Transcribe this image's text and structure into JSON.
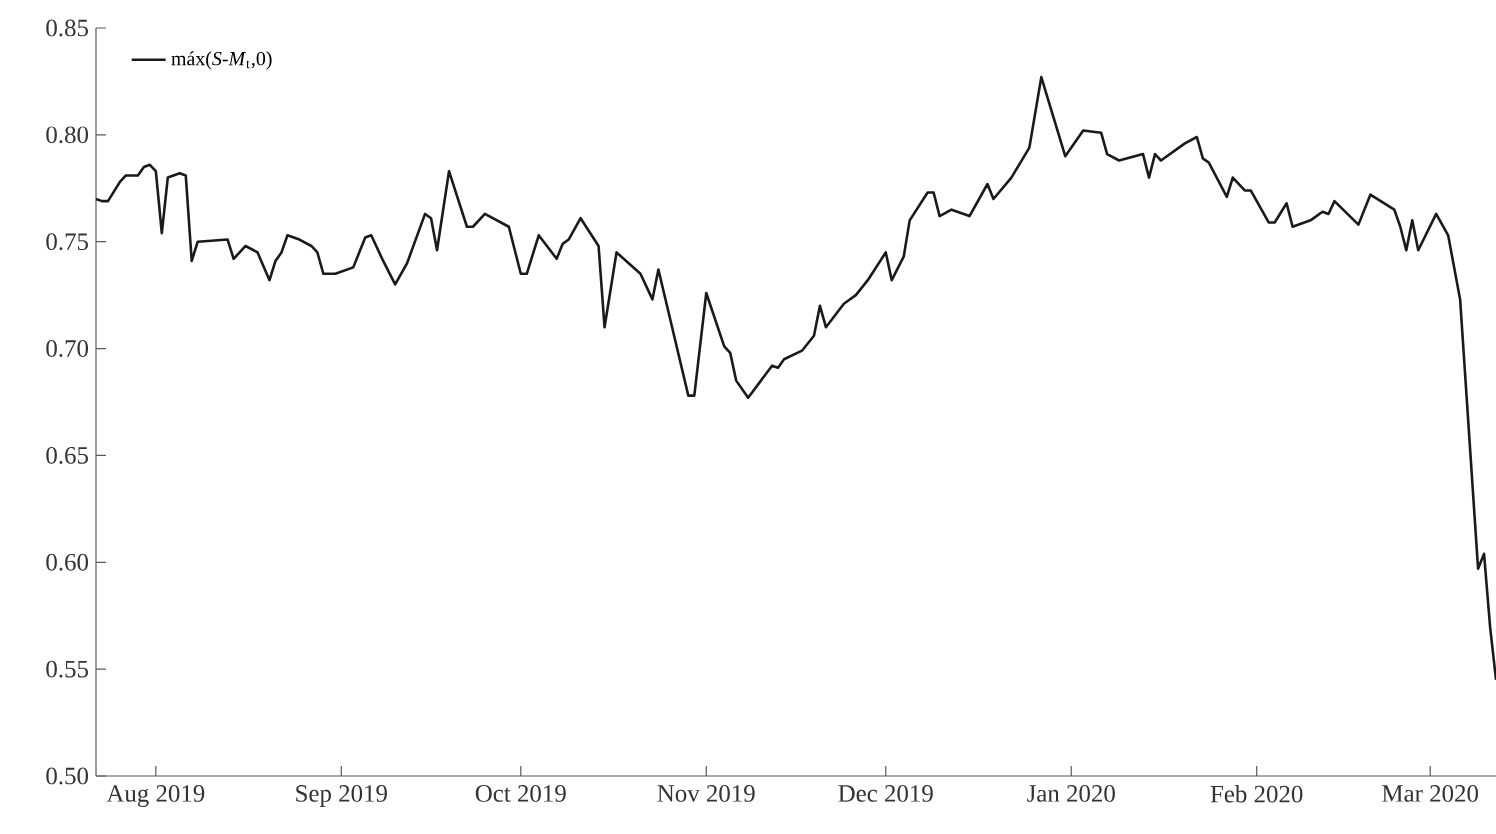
{
  "chart_data": {
    "type": "line",
    "x": [
      "2019-07-22",
      "2019-07-23",
      "2019-07-24",
      "2019-07-26",
      "2019-07-27",
      "2019-07-29",
      "2019-07-30",
      "2019-07-31",
      "2019-08-01",
      "2019-08-02",
      "2019-08-03",
      "2019-08-05",
      "2019-08-06",
      "2019-08-07",
      "2019-08-08",
      "2019-08-13",
      "2019-08-14",
      "2019-08-16",
      "2019-08-18",
      "2019-08-20",
      "2019-08-21",
      "2019-08-22",
      "2019-08-23",
      "2019-08-25",
      "2019-08-27",
      "2019-08-28",
      "2019-08-29",
      "2019-08-31",
      "2019-09-03",
      "2019-09-05",
      "2019-09-06",
      "2019-09-08",
      "2019-09-10",
      "2019-09-12",
      "2019-09-15",
      "2019-09-16",
      "2019-09-17",
      "2019-09-19",
      "2019-09-22",
      "2019-09-23",
      "2019-09-25",
      "2019-09-29",
      "2019-10-01",
      "2019-10-02",
      "2019-10-04",
      "2019-10-07",
      "2019-10-08",
      "2019-10-09",
      "2019-10-11",
      "2019-10-14",
      "2019-10-15",
      "2019-10-17",
      "2019-10-21",
      "2019-10-23",
      "2019-10-24",
      "2019-10-29",
      "2019-10-30",
      "2019-11-01",
      "2019-11-04",
      "2019-11-05",
      "2019-11-06",
      "2019-11-08",
      "2019-11-12",
      "2019-11-13",
      "2019-11-14",
      "2019-11-17",
      "2019-11-19",
      "2019-11-20",
      "2019-11-21",
      "2019-11-24",
      "2019-11-26",
      "2019-11-28",
      "2019-12-01",
      "2019-12-02",
      "2019-12-04",
      "2019-12-05",
      "2019-12-08",
      "2019-12-09",
      "2019-12-10",
      "2019-12-12",
      "2019-12-15",
      "2019-12-18",
      "2019-12-19",
      "2019-12-22",
      "2019-12-25",
      "2019-12-27",
      "2019-12-31",
      "2020-01-03",
      "2020-01-06",
      "2020-01-07",
      "2020-01-09",
      "2020-01-13",
      "2020-01-14",
      "2020-01-15",
      "2020-01-16",
      "2020-01-20",
      "2020-01-22",
      "2020-01-23",
      "2020-01-24",
      "2020-01-27",
      "2020-01-28",
      "2020-01-30",
      "2020-01-31",
      "2020-02-03",
      "2020-02-04",
      "2020-02-06",
      "2020-02-07",
      "2020-02-10",
      "2020-02-12",
      "2020-02-13",
      "2020-02-14",
      "2020-02-18",
      "2020-02-20",
      "2020-02-24",
      "2020-02-25",
      "2020-02-26",
      "2020-02-27",
      "2020-02-28",
      "2020-03-02",
      "2020-03-04",
      "2020-03-06",
      "2020-03-09",
      "2020-03-10",
      "2020-03-11",
      "2020-03-12"
    ],
    "series": [
      {
        "name": "máx(*S*-*M*$_{t}$,0)",
        "color": "#1a1a1a",
        "values": [
          0.77,
          0.769,
          0.769,
          0.778,
          0.781,
          0.781,
          0.785,
          0.786,
          0.783,
          0.754,
          0.78,
          0.782,
          0.781,
          0.741,
          0.75,
          0.751,
          0.742,
          0.748,
          0.745,
          0.732,
          0.741,
          0.745,
          0.753,
          0.751,
          0.748,
          0.745,
          0.735,
          0.735,
          0.738,
          0.752,
          0.753,
          0.741,
          0.73,
          0.74,
          0.763,
          0.761,
          0.746,
          0.783,
          0.757,
          0.757,
          0.763,
          0.757,
          0.735,
          0.735,
          0.753,
          0.742,
          0.749,
          0.751,
          0.761,
          0.748,
          0.71,
          0.745,
          0.735,
          0.723,
          0.737,
          0.678,
          0.678,
          0.726,
          0.701,
          0.698,
          0.685,
          0.677,
          0.692,
          0.691,
          0.695,
          0.699,
          0.706,
          0.72,
          0.71,
          0.721,
          0.725,
          0.732,
          0.745,
          0.732,
          0.743,
          0.76,
          0.773,
          0.773,
          0.762,
          0.765,
          0.762,
          0.777,
          0.77,
          0.78,
          0.794,
          0.827,
          0.79,
          0.802,
          0.801,
          0.791,
          0.788,
          0.791,
          0.78,
          0.791,
          0.788,
          0.796,
          0.799,
          0.789,
          0.787,
          0.771,
          0.78,
          0.774,
          0.774,
          0.759,
          0.759,
          0.768,
          0.757,
          0.76,
          0.764,
          0.763,
          0.769,
          0.758,
          0.772,
          0.765,
          0.757,
          0.746,
          0.76,
          0.746,
          0.763,
          0.753,
          0.723,
          0.597,
          0.604,
          0.57,
          0.545
        ]
      }
    ],
    "xlim": [
      "2019-07-22",
      "2020-03-12"
    ],
    "xticks": [
      {
        "value": "2019-08-01",
        "label": "Aug 2019"
      },
      {
        "value": "2019-09-01",
        "label": "Sep 2019"
      },
      {
        "value": "2019-10-01",
        "label": "Oct 2019"
      },
      {
        "value": "2019-11-01",
        "label": "Nov 2019"
      },
      {
        "value": "2019-12-01",
        "label": "Dec 2019"
      },
      {
        "value": "2020-01-01",
        "label": "Jan 2020"
      },
      {
        "value": "2020-02-01",
        "label": "Feb 2020"
      },
      {
        "value": "2020-03-01",
        "label": "Mar 2020"
      }
    ],
    "ylim": [
      0.5,
      0.85
    ],
    "yticks": [
      {
        "value": 0.5,
        "label": "0.50"
      },
      {
        "value": 0.55,
        "label": "0.55"
      },
      {
        "value": 0.6,
        "label": "0.60"
      },
      {
        "value": 0.65,
        "label": "0.65"
      },
      {
        "value": 0.7,
        "label": "0.70"
      },
      {
        "value": 0.75,
        "label": "0.75"
      },
      {
        "value": 0.8,
        "label": "0.80"
      },
      {
        "value": 0.85,
        "label": "0.85"
      }
    ],
    "legend": "top left",
    "line_style": "solid"
  }
}
